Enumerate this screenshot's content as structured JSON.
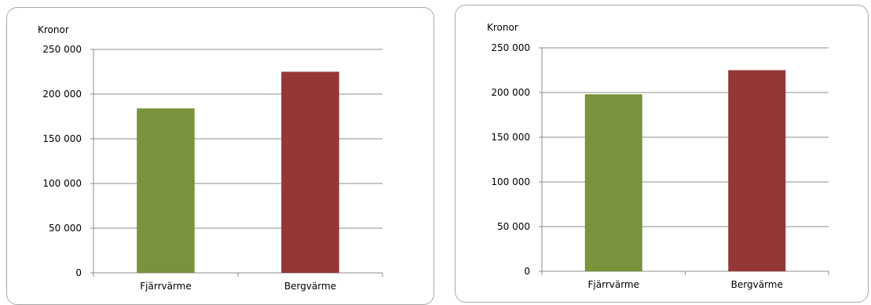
{
  "chart_data": [
    {
      "type": "bar",
      "ylabel": "Kronor",
      "categories": [
        "Fjärrvärme",
        "Bergvärme"
      ],
      "values": [
        184000,
        225000
      ],
      "colors": [
        "#77933C",
        "#953735"
      ],
      "ylim": [
        0,
        250000
      ],
      "yticks": [
        "0",
        "50 000",
        "100 000",
        "150 000",
        "200 000",
        "250 000"
      ],
      "grid": true
    },
    {
      "type": "bar",
      "ylabel": "Kronor",
      "categories": [
        "Fjärrvärme",
        "Bergvärme"
      ],
      "values": [
        198000,
        225000
      ],
      "colors": [
        "#77933C",
        "#953735"
      ],
      "ylim": [
        0,
        250000
      ],
      "yticks": [
        "0",
        "50 000",
        "100 000",
        "150 000",
        "200 000",
        "250 000"
      ],
      "grid": true
    }
  ]
}
